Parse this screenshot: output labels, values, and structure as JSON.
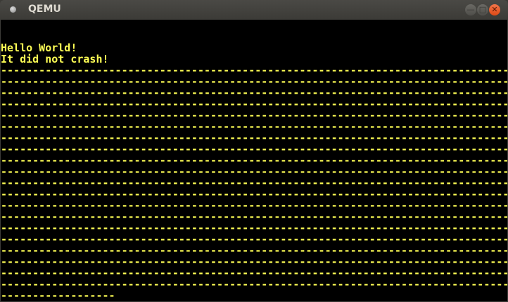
{
  "window": {
    "title": "QEMU",
    "icon": "qemu-app-icon",
    "buttons": {
      "minimize": "minimize-icon",
      "maximize": "maximize-icon",
      "close": "close-icon"
    }
  },
  "screen": {
    "text_color": "#ffff55",
    "background": "#000000",
    "lines": [
      "",
      "",
      "Hello World!",
      "It did not crash!",
      "--------------------------------------------------------------------------------",
      "--------------------------------------------------------------------------------",
      "--------------------------------------------------------------------------------",
      "--------------------------------------------------------------------------------",
      "--------------------------------------------------------------------------------",
      "--------------------------------------------------------------------------------",
      "--------------------------------------------------------------------------------",
      "--------------------------------------------------------------------------------",
      "--------------------------------------------------------------------------------",
      "--------------------------------------------------------------------------------",
      "--------------------------------------------------------------------------------",
      "--------------------------------------------------------------------------------",
      "--------------------------------------------------------------------------------",
      "--------------------------------------------------------------------------------",
      "--------------------------------------------------------------------------------",
      "--------------------------------------------------------------------------------",
      "--------------------------------------------------------------------------------",
      "--------------------------------------------------------------------------------",
      "--------------------------------------------------------------------------------",
      "--------------------------------------------------------------------------------",
      "------------------"
    ]
  }
}
